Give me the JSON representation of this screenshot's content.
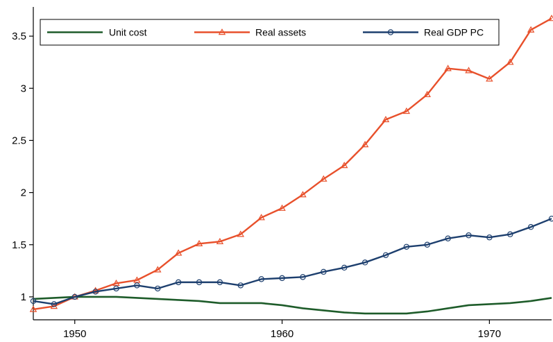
{
  "chart_data": {
    "type": "line",
    "title": "",
    "xlabel": "",
    "ylabel": "",
    "xlim": [
      1948,
      1973
    ],
    "ylim": [
      0.78,
      3.78
    ],
    "x_ticks": [
      1950,
      1960,
      1970
    ],
    "x_tick_labels": [
      "1950",
      "1960",
      "1970"
    ],
    "y_ticks": [
      1,
      1.5,
      2,
      2.5,
      3,
      3.5
    ],
    "y_tick_labels": [
      "1",
      "1.5",
      "2",
      "2.5",
      "3",
      "3.5"
    ],
    "grid": false,
    "legend_position": "top",
    "x": [
      1948,
      1949,
      1950,
      1951,
      1952,
      1953,
      1954,
      1955,
      1956,
      1957,
      1958,
      1959,
      1960,
      1961,
      1962,
      1963,
      1964,
      1965,
      1966,
      1967,
      1968,
      1969,
      1970,
      1971,
      1972,
      1973
    ],
    "series": [
      {
        "name": "Unit cost",
        "color": "#1e5c2a",
        "marker": "none",
        "values": [
          0.98,
          0.99,
          1.0,
          1.0,
          1.0,
          0.99,
          0.98,
          0.97,
          0.96,
          0.94,
          0.94,
          0.94,
          0.92,
          0.89,
          0.87,
          0.85,
          0.84,
          0.84,
          0.84,
          0.86,
          0.89,
          0.92,
          0.93,
          0.94,
          0.96,
          0.99
        ]
      },
      {
        "name": "Real assets",
        "color": "#e8502b",
        "marker": "triangle",
        "values": [
          0.88,
          0.91,
          1.0,
          1.06,
          1.13,
          1.16,
          1.26,
          1.42,
          1.51,
          1.53,
          1.6,
          1.76,
          1.85,
          1.98,
          2.13,
          2.26,
          2.46,
          2.7,
          2.78,
          2.94,
          3.19,
          3.17,
          3.09,
          3.25,
          3.56,
          3.67
        ]
      },
      {
        "name": "Real GDP PC",
        "color": "#1d3f6e",
        "marker": "circle",
        "values": [
          0.96,
          0.93,
          1.0,
          1.05,
          1.08,
          1.11,
          1.08,
          1.14,
          1.14,
          1.14,
          1.11,
          1.17,
          1.18,
          1.19,
          1.24,
          1.28,
          1.33,
          1.4,
          1.48,
          1.5,
          1.56,
          1.59,
          1.57,
          1.6,
          1.67,
          1.75
        ]
      }
    ]
  }
}
